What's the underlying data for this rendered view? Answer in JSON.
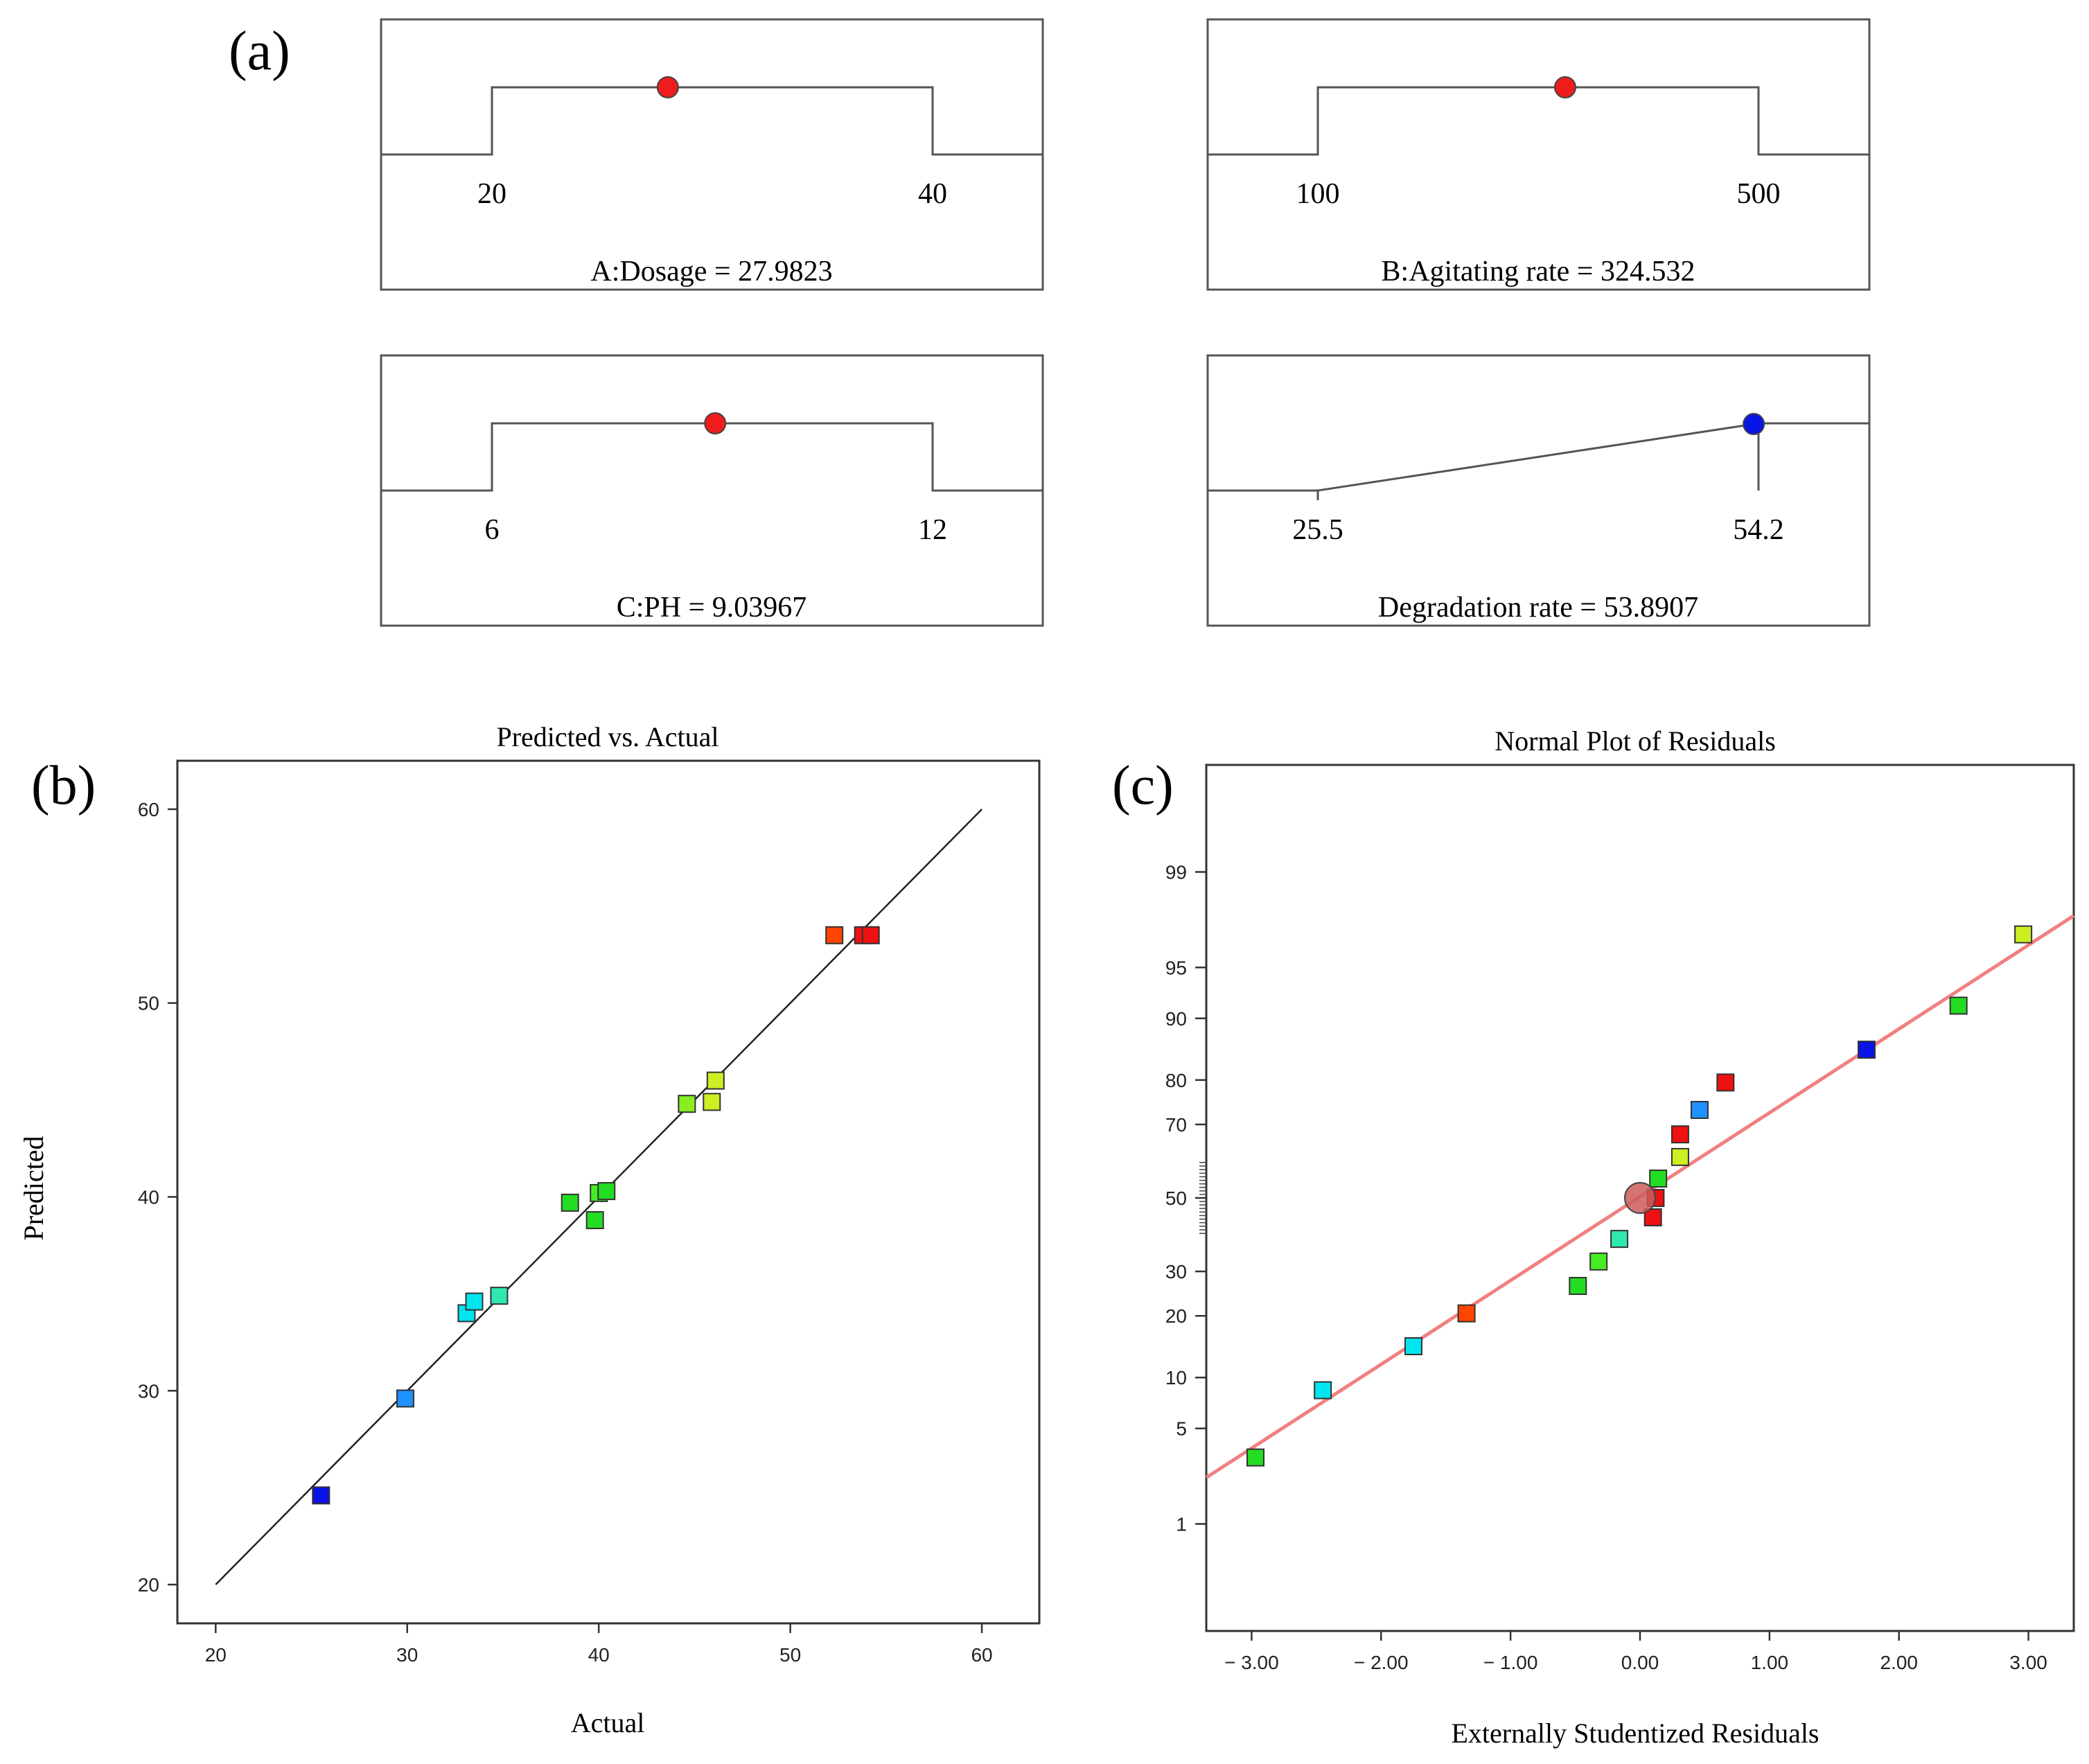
{
  "panel_labels": {
    "a": "(a)",
    "b": "(b)",
    "c": "(c)"
  },
  "colors": {
    "factor_marker": "#ee1c1c",
    "response_marker": "#0a14e6",
    "fit_line_b": "#222222",
    "fit_line_c": "#f08080",
    "center_point": "#cd5c5c"
  },
  "ramps": [
    {
      "key": "dosage",
      "low_label": "20",
      "high_label": "40",
      "low": 20,
      "high": 40,
      "value": 27.9823,
      "shape": "plateau",
      "marker": "red",
      "label": "A:Dosage = 27.9823"
    },
    {
      "key": "agitating",
      "low_label": "100",
      "high_label": "500",
      "low": 100,
      "high": 500,
      "value": 324.532,
      "shape": "plateau",
      "marker": "red",
      "label": "B:Agitating rate = 324.532"
    },
    {
      "key": "ph",
      "low_label": "6",
      "high_label": "12",
      "low": 6,
      "high": 12,
      "value": 9.03967,
      "shape": "plateau",
      "marker": "red",
      "label": "C:PH = 9.03967"
    },
    {
      "key": "degradation",
      "low_label": "25.5",
      "high_label": "54.2",
      "low": 25.5,
      "high": 54.2,
      "value": 53.8907,
      "shape": "ramp-up",
      "marker": "blue",
      "label": "Degradation rate = 53.8907"
    }
  ],
  "chart_data": [
    {
      "type": "scatter",
      "title": "Predicted vs. Actual",
      "xlabel": "Actual",
      "ylabel": "Predicted",
      "xlim": [
        18,
        63
      ],
      "ylim": [
        18,
        62.5
      ],
      "xticks": [
        20,
        30,
        40,
        50,
        60
      ],
      "yticks": [
        20,
        30,
        40,
        50,
        60
      ],
      "reference_line": {
        "from": [
          20,
          20
        ],
        "to": [
          60,
          60
        ]
      },
      "points": [
        {
          "x": 25.5,
          "y": 24.6,
          "color": "#0a14e6"
        },
        {
          "x": 29.9,
          "y": 29.6,
          "color": "#1e90ff"
        },
        {
          "x": 33.1,
          "y": 34.0,
          "color": "#00e5ee"
        },
        {
          "x": 33.5,
          "y": 34.6,
          "color": "#00e5ee"
        },
        {
          "x": 34.8,
          "y": 34.9,
          "color": "#2ee8b0"
        },
        {
          "x": 38.5,
          "y": 39.7,
          "color": "#22dd22"
        },
        {
          "x": 39.8,
          "y": 38.8,
          "color": "#22dd22"
        },
        {
          "x": 40.0,
          "y": 40.2,
          "color": "#44ee22"
        },
        {
          "x": 40.4,
          "y": 40.3,
          "color": "#22dd22"
        },
        {
          "x": 44.6,
          "y": 44.8,
          "color": "#88ee22"
        },
        {
          "x": 45.9,
          "y": 44.9,
          "color": "#ccee22"
        },
        {
          "x": 46.1,
          "y": 46.0,
          "color": "#ccee22"
        },
        {
          "x": 52.3,
          "y": 53.5,
          "color": "#ff4500"
        },
        {
          "x": 53.8,
          "y": 53.5,
          "color": "#ee1111"
        },
        {
          "x": 54.2,
          "y": 53.5,
          "color": "#ee1111"
        }
      ]
    },
    {
      "type": "scatter",
      "title": "Normal Plot of Residuals",
      "xlabel": "Externally Studentized Residuals",
      "ylabel": "",
      "xlim": [
        -3.35,
        3.35
      ],
      "yaxis": "normal-probability (%)",
      "xticks": [
        -3,
        -2,
        -1,
        0,
        1,
        2,
        3
      ],
      "xtick_labels": [
        "− 3.00",
        "− 2.00",
        "− 1.00",
        "0.00",
        "1.00",
        "2.00",
        "3.00"
      ],
      "yticks": [
        1,
        5,
        10,
        20,
        30,
        50,
        70,
        80,
        90,
        95,
        99
      ],
      "ytick_labels": [
        "1",
        "5",
        "10",
        "20",
        "30",
        "50",
        "70",
        "80",
        "90",
        "95",
        "99"
      ],
      "fit_line": {
        "from": [
          -3.35,
          2.3
        ],
        "to": [
          3.35,
          97.8
        ]
      },
      "center_point": {
        "x": 0.0,
        "y": 50
      },
      "points": [
        {
          "x": -2.97,
          "y": 3.2,
          "color": "#22dd22"
        },
        {
          "x": -2.45,
          "y": 8.5,
          "color": "#00e5ee"
        },
        {
          "x": -1.75,
          "y": 14.5,
          "color": "#00e5ee"
        },
        {
          "x": -1.34,
          "y": 20.5,
          "color": "#ff4500"
        },
        {
          "x": -0.48,
          "y": 26.5,
          "color": "#22dd22"
        },
        {
          "x": -0.32,
          "y": 32.5,
          "color": "#44ee22"
        },
        {
          "x": -0.16,
          "y": 38.5,
          "color": "#2ee8b0"
        },
        {
          "x": 0.1,
          "y": 44.5,
          "color": "#ee1111"
        },
        {
          "x": 0.12,
          "y": 50.0,
          "color": "#ee1111"
        },
        {
          "x": 0.14,
          "y": 55.5,
          "color": "#22dd22"
        },
        {
          "x": 0.31,
          "y": 61.5,
          "color": "#ccee22"
        },
        {
          "x": 0.31,
          "y": 67.5,
          "color": "#ee1111"
        },
        {
          "x": 0.46,
          "y": 73.5,
          "color": "#1e90ff"
        },
        {
          "x": 0.66,
          "y": 79.5,
          "color": "#ee1111"
        },
        {
          "x": 1.75,
          "y": 85.5,
          "color": "#0a14e6"
        },
        {
          "x": 2.46,
          "y": 91.5,
          "color": "#22dd22"
        },
        {
          "x": 2.96,
          "y": 97.0,
          "color": "#ccee22"
        }
      ]
    }
  ]
}
